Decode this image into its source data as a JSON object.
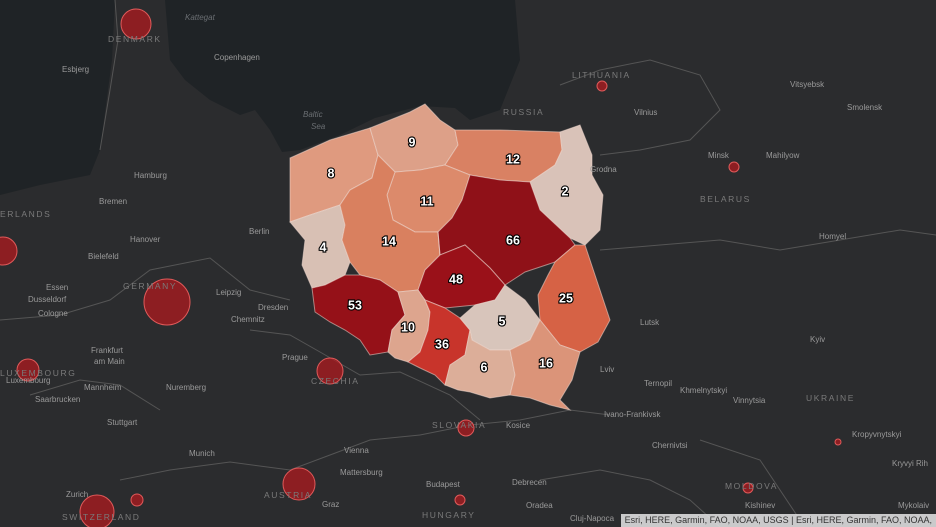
{
  "map": {
    "colors": {
      "background": "#2b2c2e",
      "sea": "#1f2326",
      "border": "#555555",
      "bubble": "#b3191e"
    },
    "regions": [
      {
        "id": "zachodniopomorskie",
        "value": 8,
        "color": "#df9a7f"
      },
      {
        "id": "pomorskie",
        "value": 9,
        "color": "#dda088"
      },
      {
        "id": "warminsko-mazurskie",
        "value": 12,
        "color": "#d98163"
      },
      {
        "id": "podlaskie",
        "value": 2,
        "color": "#d9c2b8"
      },
      {
        "id": "lubuskie",
        "value": 4,
        "color": "#d8c0b4"
      },
      {
        "id": "kujawsko-pomorskie",
        "value": 11,
        "color": "#dc8a6b"
      },
      {
        "id": "wielkopolskie",
        "value": 14,
        "color": "#d9805f"
      },
      {
        "id": "mazowieckie",
        "value": 66,
        "color": "#8f1118"
      },
      {
        "id": "lodzkie",
        "value": 48,
        "color": "#9a1119"
      },
      {
        "id": "lubelskie",
        "value": 25,
        "color": "#d66245"
      },
      {
        "id": "dolnoslaskie",
        "value": 53,
        "color": "#951118"
      },
      {
        "id": "opolskie",
        "value": 10,
        "color": "#dda58e"
      },
      {
        "id": "slaskie",
        "value": 36,
        "color": "#c8342b"
      },
      {
        "id": "swietokrzyskie",
        "value": 5,
        "color": "#d8c5bb"
      },
      {
        "id": "malopolskie",
        "value": 6,
        "color": "#dcae99"
      },
      {
        "id": "podkarpackie",
        "value": 16,
        "color": "#db9479"
      }
    ],
    "cities": [
      "Copenhagen",
      "Esbjerg",
      "Hamburg",
      "Bremen",
      "Hanover",
      "Berlin",
      "Bielefeld",
      "Essen",
      "Dusseldorf",
      "Cologne",
      "Leipzig",
      "Dresden",
      "Chemnitz",
      "Frankfurt",
      "am Main",
      "Mannheim",
      "Nuremberg",
      "Saarbrucken",
      "Stuttgart",
      "Munich",
      "Zurich",
      "Prague",
      "Vienna",
      "Mattersburg",
      "Graz",
      "Budapest",
      "Debrecen",
      "Oradea",
      "Cluj-Napoca",
      "Kosice",
      "Vilnius",
      "Minsk",
      "Mahilyow",
      "Vitsyebsk",
      "Smolensk",
      "Homyel",
      "Lutsk",
      "Lviv",
      "Ternopil",
      "Khmelnytskyi",
      "Ivano-Frankivsk",
      "Chernivtsi",
      "Vinnytsia",
      "Kyiv",
      "Kropyvnytskyi",
      "Kryvyi Rih",
      "Kishinev",
      "Mykolaiv",
      "Luxembourg",
      "Grodna"
    ],
    "countries": [
      "DENMARK",
      "ERLANDS",
      "GERMANY",
      "LUXEMBOURG",
      "CZECHIA",
      "AUSTRIA",
      "SWITZERLAND",
      "SLOVAKIA",
      "HUNGARY",
      "LITHUANIA",
      "RUSSIA",
      "BELARUS",
      "UKRAINE",
      "MOLDOVA"
    ],
    "water": [
      "Kattegat",
      "Baltic",
      "Sea"
    ]
  },
  "attribution": "Esri, HERE, Garmin, FAO, NOAA, USGS | Esri, HERE, Garmin, FAO, NOAA,"
}
